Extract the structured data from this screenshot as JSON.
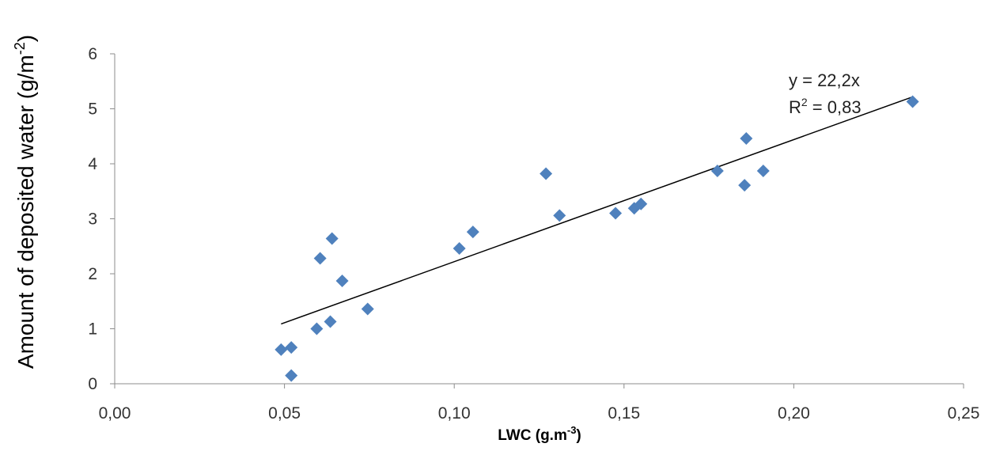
{
  "chart_data": {
    "type": "scatter",
    "xlabel": "LWC (g.m",
    "xlabel_sup": "-3",
    "xlabel_end": ")",
    "ylabel": "Amount of deposited water (g/m",
    "ylabel_sup": "-2",
    "ylabel_end": ")",
    "xlim": [
      0,
      0.25
    ],
    "ylim": [
      0,
      6
    ],
    "x_ticks": [
      0,
      0.05,
      0.1,
      0.15,
      0.2,
      0.25
    ],
    "x_tick_labels": [
      "0,00",
      "0,05",
      "0,10",
      "0,15",
      "0,20",
      "0,25"
    ],
    "y_ticks": [
      0,
      1,
      2,
      3,
      4,
      5,
      6
    ],
    "y_tick_labels": [
      "0",
      "1",
      "2",
      "3",
      "4",
      "5",
      "6"
    ],
    "grid": false,
    "marker": "diamond",
    "color": "#4f81bd",
    "series": [
      {
        "x": [
          0.049,
          0.052,
          0.052,
          0.0595,
          0.0605,
          0.0635,
          0.064,
          0.067,
          0.0745,
          0.1015,
          0.1055,
          0.127,
          0.131,
          0.1475,
          0.153,
          0.155,
          0.1775,
          0.1855,
          0.186,
          0.191,
          0.235
        ],
        "y": [
          0.62,
          0.66,
          0.15,
          1.0,
          2.28,
          1.13,
          2.64,
          1.87,
          1.36,
          2.46,
          2.76,
          3.82,
          3.06,
          3.1,
          3.19,
          3.27,
          3.87,
          3.61,
          4.46,
          3.87,
          5.13
        ]
      }
    ],
    "trendline": {
      "type": "linear",
      "slope": 22.2,
      "x_range": [
        0.049,
        0.235
      ],
      "equation": "y = 22,2x",
      "r2_prefix": "R",
      "r2_sup": "2",
      "r2_value": " = 0,83"
    }
  }
}
